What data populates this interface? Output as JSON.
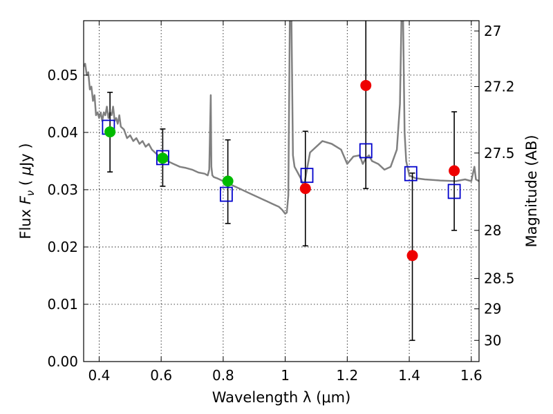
{
  "chart_data": {
    "type": "scatter",
    "xlabel": "Wavelength  λ (μm)",
    "ylabel": "Flux  F<sub>ν</sub>  ( μJy )",
    "ylabel_right": "Magnitude (AB)",
    "xlim": [
      0.35,
      1.625
    ],
    "ylim": [
      0.0,
      0.0595
    ],
    "grid": true,
    "x_ticks": [
      0.4,
      0.6,
      0.8,
      1.0,
      1.2,
      1.4,
      1.6
    ],
    "x_tick_labels": [
      "0.4",
      "0.6",
      "0.8",
      "1",
      "1.2",
      "1.4",
      "1.6"
    ],
    "y_ticks": [
      0.0,
      0.01,
      0.02,
      0.03,
      0.04,
      0.05
    ],
    "y_tick_labels": [
      "0.00",
      "0.01",
      "0.02",
      "0.03",
      "0.04",
      "0.05"
    ],
    "right_ticks": [
      {
        "label": "27",
        "flux": 0.0577
      },
      {
        "label": "27.2",
        "flux": 0.048
      },
      {
        "label": "27.5",
        "flux": 0.0364
      },
      {
        "label": "28",
        "flux": 0.0229
      },
      {
        "label": "28.5",
        "flux": 0.0145
      },
      {
        "label": "29",
        "flux": 0.0092
      },
      {
        "label": "30",
        "flux": 0.0037
      }
    ],
    "colors": {
      "spectrum": "#808080",
      "model_marker": "#0000cc",
      "hst_points": "#00bb00",
      "ir_points": "#ee0000",
      "error_bars": "#000000"
    },
    "series": [
      {
        "kind": "spectrum",
        "x": [
          0.35,
          0.355,
          0.36,
          0.365,
          0.37,
          0.375,
          0.38,
          0.385,
          0.39,
          0.395,
          0.4,
          0.405,
          0.41,
          0.415,
          0.42,
          0.425,
          0.43,
          0.435,
          0.44,
          0.445,
          0.45,
          0.455,
          0.46,
          0.465,
          0.47,
          0.48,
          0.49,
          0.5,
          0.51,
          0.52,
          0.53,
          0.54,
          0.55,
          0.56,
          0.57,
          0.58,
          0.59,
          0.6,
          0.62,
          0.64,
          0.66,
          0.68,
          0.7,
          0.72,
          0.74,
          0.75,
          0.755,
          0.76,
          0.762,
          0.765,
          0.77,
          0.78,
          0.8,
          0.82,
          0.84,
          0.86,
          0.88,
          0.9,
          0.92,
          0.94,
          0.96,
          0.98,
          0.99,
          1.0,
          1.005,
          1.01,
          1.015,
          1.02,
          1.025,
          1.03,
          1.04,
          1.05,
          1.06,
          1.07,
          1.08,
          1.1,
          1.12,
          1.15,
          1.18,
          1.2,
          1.22,
          1.24,
          1.25,
          1.26,
          1.27,
          1.28,
          1.3,
          1.32,
          1.34,
          1.36,
          1.37,
          1.375,
          1.38,
          1.385,
          1.39,
          1.4,
          1.42,
          1.45,
          1.5,
          1.55,
          1.58,
          1.6,
          1.61,
          1.615,
          1.625
        ],
        "y": [
          0.0515,
          0.052,
          0.05,
          0.0505,
          0.0475,
          0.048,
          0.0455,
          0.0465,
          0.043,
          0.0435,
          0.0425,
          0.0435,
          0.042,
          0.0435,
          0.043,
          0.0445,
          0.0425,
          0.0435,
          0.043,
          0.0445,
          0.042,
          0.0425,
          0.0415,
          0.043,
          0.041,
          0.0405,
          0.039,
          0.0395,
          0.0385,
          0.039,
          0.038,
          0.0385,
          0.0375,
          0.038,
          0.037,
          0.0365,
          0.036,
          0.0355,
          0.035,
          0.0345,
          0.034,
          0.0338,
          0.0335,
          0.033,
          0.0328,
          0.0325,
          0.0335,
          0.0465,
          0.034,
          0.0325,
          0.0322,
          0.032,
          0.0315,
          0.031,
          0.0305,
          0.03,
          0.0295,
          0.029,
          0.0285,
          0.028,
          0.0275,
          0.027,
          0.0265,
          0.0258,
          0.026,
          0.029,
          0.06,
          0.06,
          0.036,
          0.034,
          0.033,
          0.032,
          0.0305,
          0.0335,
          0.0365,
          0.0375,
          0.0385,
          0.038,
          0.037,
          0.0345,
          0.0358,
          0.036,
          0.0345,
          0.0355,
          0.036,
          0.035,
          0.0345,
          0.0335,
          0.034,
          0.037,
          0.045,
          0.06,
          0.06,
          0.04,
          0.035,
          0.0325,
          0.032,
          0.0318,
          0.0316,
          0.0315,
          0.0318,
          0.0315,
          0.034,
          0.0318,
          0.0315
        ]
      },
      {
        "kind": "model",
        "x": [
          0.43,
          0.605,
          0.81,
          1.07,
          1.26,
          1.405,
          1.545
        ],
        "y": [
          0.0409,
          0.0356,
          0.0292,
          0.0325,
          0.0368,
          0.0328,
          0.0297
        ]
      },
      {
        "kind": "hst",
        "x": [
          0.435,
          0.605,
          0.815
        ],
        "y": [
          0.0401,
          0.0355,
          0.0315
        ],
        "yerr_low": [
          0.0331,
          0.0306,
          0.0241
        ],
        "yerr_high": [
          0.047,
          0.0406,
          0.0387
        ]
      },
      {
        "kind": "ir",
        "x": [
          1.065,
          1.26,
          1.41,
          1.545
        ],
        "y": [
          0.0302,
          0.0482,
          0.0185,
          0.0333
        ],
        "yerr_low": [
          0.0202,
          0.0302,
          0.0037,
          0.0229
        ],
        "yerr_high": [
          0.0402,
          0.0595,
          0.0329,
          0.0436
        ]
      }
    ]
  }
}
